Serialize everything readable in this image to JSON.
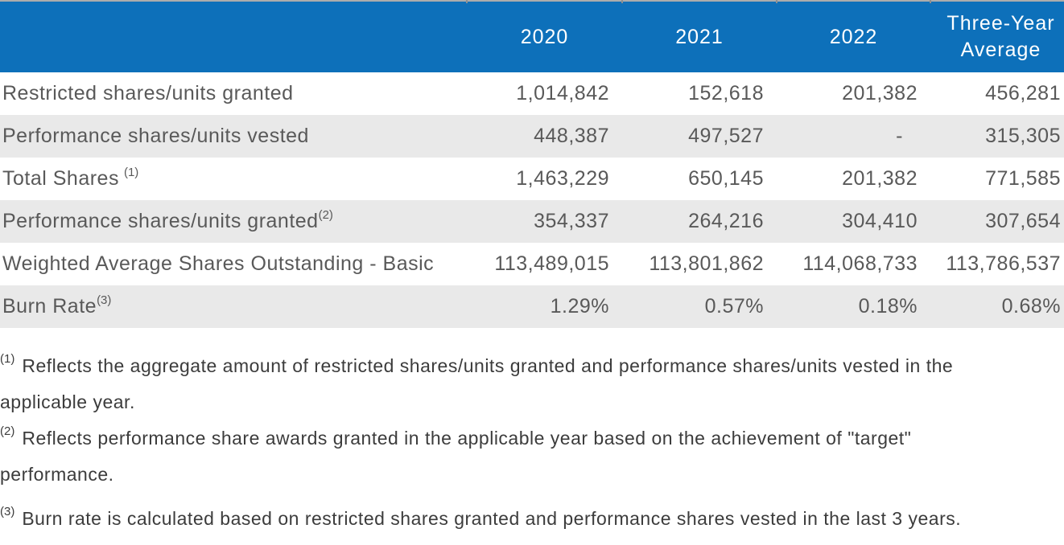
{
  "colors": {
    "header_bg": "#0D70BA",
    "header_text": "#FFFFFF",
    "alt_row_bg": "#E9E9E9",
    "table_text": "#595959",
    "footnote_text": "#3C3C3C",
    "top_border": "#ACACAC"
  },
  "table": {
    "columns": [
      "",
      "2020",
      "2021",
      "2022",
      "Three-Year Average"
    ],
    "rows": [
      {
        "label": "Restricted shares/units granted",
        "sup": "",
        "values": [
          "1,014,842",
          "152,618",
          "201,382",
          "456,281"
        ]
      },
      {
        "label": "Performance shares/units vested",
        "sup": "",
        "values": [
          "448,387",
          "497,527",
          "-",
          "315,305"
        ]
      },
      {
        "label": "Total Shares",
        "sup": "(1)",
        "values": [
          "1,463,229",
          "650,145",
          "201,382",
          "771,585"
        ]
      },
      {
        "label": "Performance shares/units granted",
        "sup": "(2)",
        "values": [
          "354,337",
          "264,216",
          "304,410",
          "307,654"
        ]
      },
      {
        "label": "Weighted Average Shares Outstanding - Basic",
        "sup": "",
        "values": [
          "113,489,015",
          "113,801,862",
          "114,068,733",
          "113,786,537"
        ]
      },
      {
        "label": "Burn Rate",
        "sup": "(3)",
        "values": [
          "1.29%",
          "0.57%",
          "0.18%",
          "0.68%"
        ]
      }
    ]
  },
  "footnotes": [
    {
      "marker": "(1)",
      "lines": [
        "Reflects the aggregate amount of restricted shares/units granted and performance shares/units vested in the",
        "applicable year."
      ]
    },
    {
      "marker": "(2)",
      "lines": [
        "Reflects performance share awards granted in the applicable year based on the achievement of \"target\"",
        "performance."
      ]
    },
    {
      "marker": "(3)",
      "lines": [
        "Burn rate is calculated based on restricted shares granted and performance shares vested in the last 3 years."
      ]
    }
  ]
}
